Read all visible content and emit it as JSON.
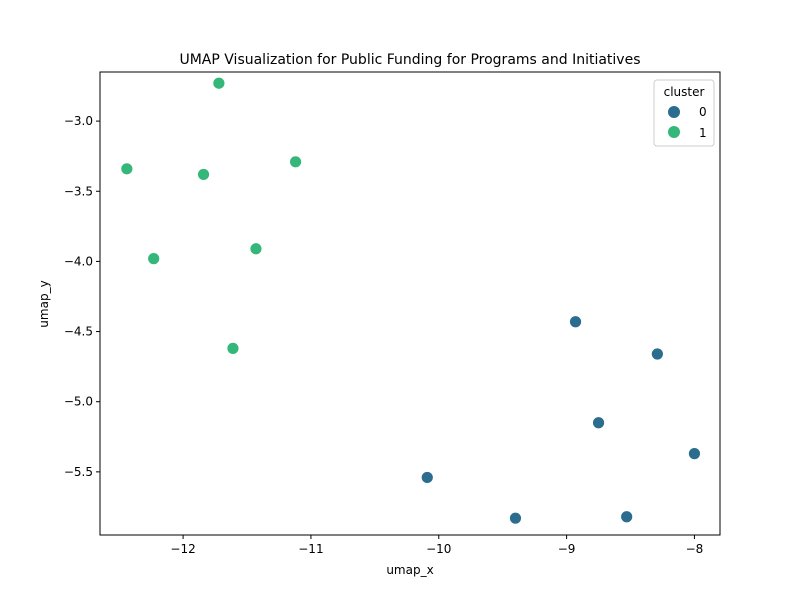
{
  "chart_data": {
    "type": "scatter",
    "title": "UMAP Visualization for Public Funding for Programs and Initiatives",
    "xlabel": "umap_x",
    "ylabel": "umap_y",
    "xlim": [
      -12.65,
      -7.8
    ],
    "ylim": [
      -5.95,
      -2.65
    ],
    "x_ticks": [
      -12,
      -11,
      -10,
      -9,
      -8
    ],
    "y_ticks": [
      -3.0,
      -3.5,
      -4.0,
      -4.5,
      -5.0,
      -5.5
    ],
    "x_tick_labels": [
      "−12",
      "−11",
      "−10",
      "−9",
      "−8"
    ],
    "y_tick_labels": [
      "−3.0",
      "−3.5",
      "−4.0",
      "−4.5",
      "−5.0",
      "−5.5"
    ],
    "grid": false,
    "legend": {
      "title": "cluster",
      "placement": "top-right",
      "entries": [
        {
          "label": "0",
          "color": "#2c6c8e"
        },
        {
          "label": "1",
          "color": "#35b779"
        }
      ]
    },
    "series": [
      {
        "name": "0",
        "color": "#2c6c8e",
        "points": [
          {
            "x": -8.93,
            "y": -4.43
          },
          {
            "x": -8.29,
            "y": -4.66
          },
          {
            "x": -8.75,
            "y": -5.15
          },
          {
            "x": -8.0,
            "y": -5.37
          },
          {
            "x": -10.09,
            "y": -5.54
          },
          {
            "x": -9.4,
            "y": -5.83
          },
          {
            "x": -8.53,
            "y": -5.82
          }
        ]
      },
      {
        "name": "1",
        "color": "#35b779",
        "points": [
          {
            "x": -11.72,
            "y": -2.73
          },
          {
            "x": -12.44,
            "y": -3.34
          },
          {
            "x": -11.84,
            "y": -3.38
          },
          {
            "x": -11.12,
            "y": -3.29
          },
          {
            "x": -12.23,
            "y": -3.98
          },
          {
            "x": -11.43,
            "y": -3.91
          },
          {
            "x": -11.61,
            "y": -4.62
          }
        ]
      }
    ]
  }
}
